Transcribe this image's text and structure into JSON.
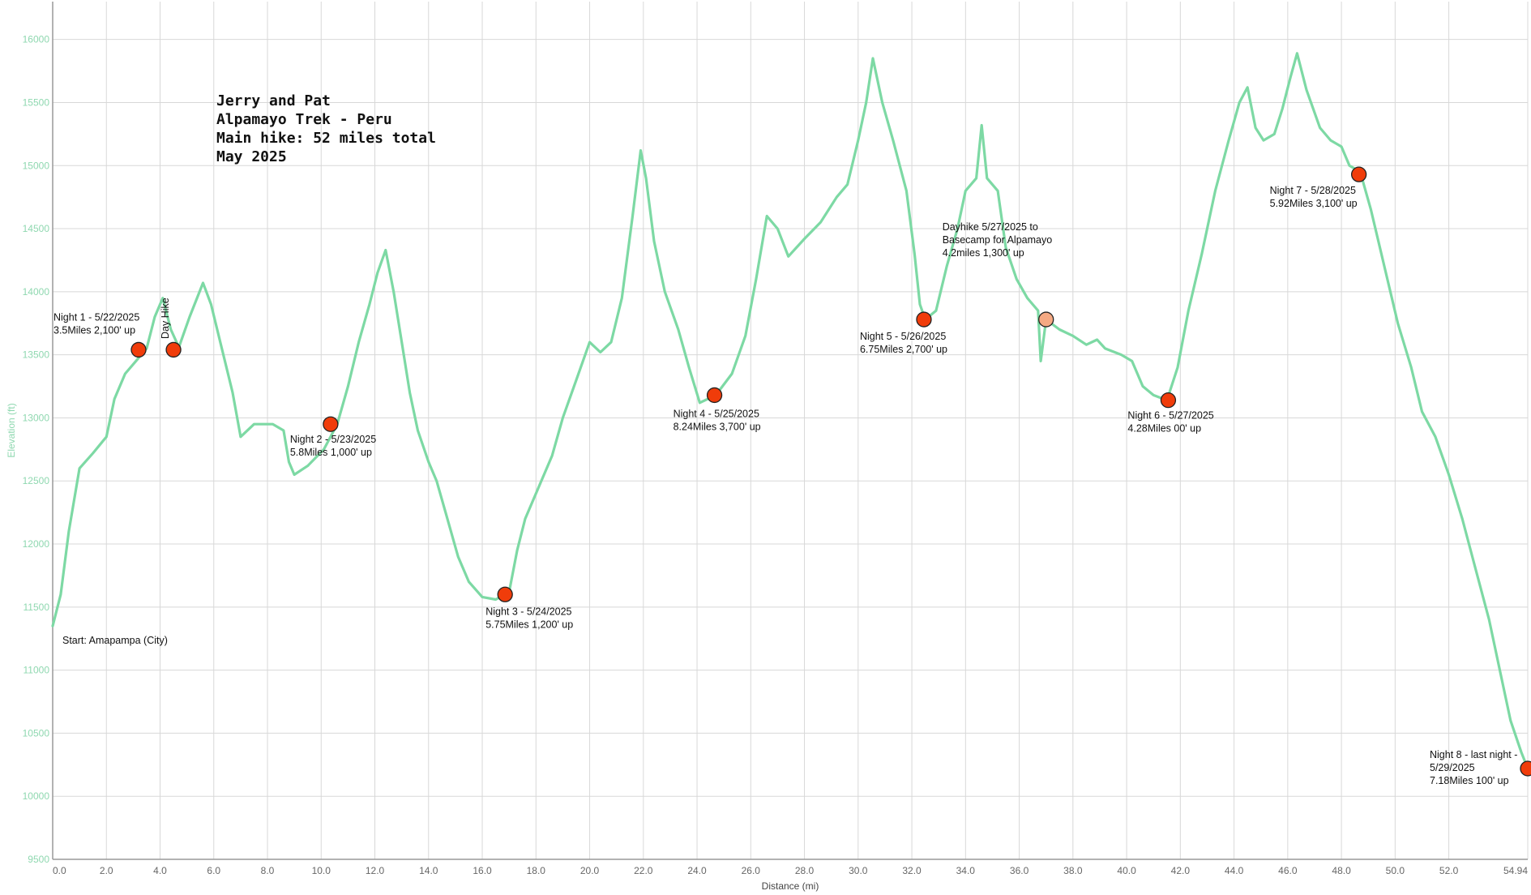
{
  "chart_data": {
    "type": "line",
    "title_lines": [
      "Jerry and Pat",
      "Alpamayo Trek - Peru",
      "Main hike: 52 miles total",
      "May 2025"
    ],
    "xlabel": "Distance (mi)",
    "ylabel": "Elevation (ft)",
    "xlim": [
      0,
      54.94
    ],
    "ylim": [
      9500,
      16300
    ],
    "x_ticks": [
      0,
      2,
      4,
      6,
      8,
      10,
      12,
      14,
      16,
      18,
      20,
      22,
      24,
      26,
      28,
      30,
      32,
      34,
      36,
      38,
      40,
      42,
      44,
      46,
      48,
      50,
      52,
      54.94
    ],
    "x_tick_labels": [
      "0.0",
      "2.0",
      "4.0",
      "6.0",
      "8.0",
      "10.0",
      "12.0",
      "14.0",
      "16.0",
      "18.0",
      "20.0",
      "22.0",
      "24.0",
      "26.0",
      "28.0",
      "30.0",
      "32.0",
      "34.0",
      "36.0",
      "38.0",
      "40.0",
      "42.0",
      "44.0",
      "46.0",
      "48.0",
      "50.0",
      "52.0",
      "54.94"
    ],
    "y_ticks": [
      9500,
      10000,
      10500,
      11000,
      11500,
      12000,
      12500,
      13000,
      13500,
      14000,
      14500,
      15000,
      15500,
      16000
    ],
    "y_tick_labels": [
      "9500",
      "10000",
      "10500",
      "11000",
      "11500",
      "12000",
      "12500",
      "13000",
      "13500",
      "14000",
      "14500",
      "15000",
      "15500",
      "16000"
    ],
    "grid": true,
    "line_color": "#7dd9a4",
    "series": [
      {
        "points": [
          [
            0,
            11350
          ],
          [
            0.3,
            11600
          ],
          [
            0.6,
            12100
          ],
          [
            1.0,
            12600
          ],
          [
            1.5,
            12720
          ],
          [
            2.0,
            12850
          ],
          [
            2.3,
            13150
          ],
          [
            2.7,
            13350
          ],
          [
            3.1,
            13450
          ],
          [
            3.5,
            13550
          ],
          [
            3.8,
            13800
          ],
          [
            4.1,
            13950
          ],
          [
            4.4,
            13700
          ],
          [
            4.7,
            13560
          ],
          [
            5.1,
            13800
          ],
          [
            5.6,
            14070
          ],
          [
            5.9,
            13900
          ],
          [
            6.3,
            13550
          ],
          [
            6.7,
            13200
          ],
          [
            7.0,
            12850
          ],
          [
            7.5,
            12950
          ],
          [
            8.2,
            12950
          ],
          [
            8.6,
            12900
          ],
          [
            8.8,
            12650
          ],
          [
            9.0,
            12550
          ],
          [
            9.5,
            12620
          ],
          [
            10.1,
            12750
          ],
          [
            10.6,
            12950
          ],
          [
            11.0,
            13250
          ],
          [
            11.4,
            13600
          ],
          [
            11.8,
            13900
          ],
          [
            12.1,
            14150
          ],
          [
            12.4,
            14330
          ],
          [
            12.7,
            14000
          ],
          [
            13.0,
            13600
          ],
          [
            13.3,
            13200
          ],
          [
            13.6,
            12900
          ],
          [
            14.0,
            12650
          ],
          [
            14.3,
            12500
          ],
          [
            14.7,
            12200
          ],
          [
            15.1,
            11900
          ],
          [
            15.5,
            11700
          ],
          [
            16.0,
            11580
          ],
          [
            16.5,
            11560
          ],
          [
            17.0,
            11620
          ],
          [
            17.3,
            11950
          ],
          [
            17.6,
            12200
          ],
          [
            18.1,
            12450
          ],
          [
            18.6,
            12700
          ],
          [
            19.0,
            13000
          ],
          [
            19.5,
            13300
          ],
          [
            20.0,
            13600
          ],
          [
            20.4,
            13520
          ],
          [
            20.8,
            13600
          ],
          [
            21.2,
            13950
          ],
          [
            21.6,
            14600
          ],
          [
            21.9,
            15120
          ],
          [
            22.1,
            14900
          ],
          [
            22.4,
            14400
          ],
          [
            22.8,
            14000
          ],
          [
            23.3,
            13700
          ],
          [
            23.7,
            13400
          ],
          [
            24.1,
            13120
          ],
          [
            24.7,
            13180
          ],
          [
            25.3,
            13350
          ],
          [
            25.8,
            13650
          ],
          [
            26.2,
            14100
          ],
          [
            26.6,
            14600
          ],
          [
            27.0,
            14500
          ],
          [
            27.4,
            14280
          ],
          [
            28.0,
            14420
          ],
          [
            28.6,
            14550
          ],
          [
            29.2,
            14750
          ],
          [
            29.6,
            14850
          ],
          [
            30.0,
            15200
          ],
          [
            30.3,
            15500
          ],
          [
            30.55,
            15850
          ],
          [
            30.9,
            15500
          ],
          [
            31.3,
            15200
          ],
          [
            31.8,
            14800
          ],
          [
            32.1,
            14300
          ],
          [
            32.3,
            13900
          ],
          [
            32.5,
            13780
          ],
          [
            32.9,
            13850
          ],
          [
            33.3,
            14200
          ],
          [
            33.7,
            14500
          ],
          [
            34.0,
            14800
          ],
          [
            34.4,
            14900
          ],
          [
            34.6,
            15320
          ],
          [
            34.8,
            14900
          ],
          [
            35.2,
            14800
          ],
          [
            35.5,
            14350
          ],
          [
            35.9,
            14100
          ],
          [
            36.3,
            13950
          ],
          [
            36.7,
            13850
          ],
          [
            36.8,
            13450
          ],
          [
            37.0,
            13780
          ],
          [
            37.5,
            13700
          ],
          [
            38.0,
            13650
          ],
          [
            38.5,
            13580
          ],
          [
            38.9,
            13620
          ],
          [
            39.2,
            13550
          ],
          [
            39.8,
            13500
          ],
          [
            40.2,
            13450
          ],
          [
            40.6,
            13250
          ],
          [
            41.0,
            13180
          ],
          [
            41.5,
            13140
          ],
          [
            41.9,
            13400
          ],
          [
            42.3,
            13850
          ],
          [
            42.8,
            14300
          ],
          [
            43.3,
            14800
          ],
          [
            43.8,
            15200
          ],
          [
            44.2,
            15500
          ],
          [
            44.5,
            15620
          ],
          [
            44.8,
            15300
          ],
          [
            45.1,
            15200
          ],
          [
            45.5,
            15250
          ],
          [
            45.8,
            15450
          ],
          [
            46.1,
            15700
          ],
          [
            46.35,
            15890
          ],
          [
            46.7,
            15600
          ],
          [
            47.2,
            15300
          ],
          [
            47.6,
            15200
          ],
          [
            48.0,
            15150
          ],
          [
            48.3,
            15000
          ],
          [
            48.7,
            14950
          ],
          [
            49.1,
            14650
          ],
          [
            49.6,
            14200
          ],
          [
            50.1,
            13750
          ],
          [
            50.6,
            13400
          ],
          [
            51.0,
            13050
          ],
          [
            51.5,
            12850
          ],
          [
            52.0,
            12550
          ],
          [
            52.5,
            12200
          ],
          [
            53.0,
            11800
          ],
          [
            53.5,
            11400
          ],
          [
            53.9,
            11000
          ],
          [
            54.3,
            10600
          ],
          [
            54.7,
            10350
          ],
          [
            54.94,
            10220
          ]
        ]
      }
    ],
    "markers": [
      {
        "x": 3.2,
        "y": 13540,
        "color": "#f03c0a",
        "label": [
          "Night 1 - 5/22/2025",
          "3.5Miles 2,100' up"
        ]
      },
      {
        "x": 4.5,
        "y": 13540,
        "color": "#f03c0a",
        "label": []
      },
      {
        "x": 10.35,
        "y": 12950,
        "color": "#f03c0a",
        "label": [
          "Night 2 - 5/23/2025",
          "5.8Miles 1,000' up"
        ]
      },
      {
        "x": 16.85,
        "y": 11600,
        "color": "#f03c0a",
        "label": [
          "Night 3 - 5/24/2025",
          "5.75Miles 1,200' up"
        ]
      },
      {
        "x": 24.65,
        "y": 13180,
        "color": "#f03c0a",
        "label": [
          "Night 4 - 5/25/2025",
          "8.24Miles 3,700' up"
        ]
      },
      {
        "x": 32.45,
        "y": 13780,
        "color": "#f03c0a",
        "label": [
          "Night 5 - 5/26/2025",
          "6.75Miles 2,700' up"
        ]
      },
      {
        "x": 37.0,
        "y": 13780,
        "color": "#f5a983",
        "label": [
          "Dayhike 5/27/2025 to",
          "Basecamp for Alpamayo",
          "4.2miles 1,300' up"
        ]
      },
      {
        "x": 41.55,
        "y": 13140,
        "color": "#f03c0a",
        "label": [
          "Night 6 - 5/27/2025",
          "4.28Miles 00' up"
        ]
      },
      {
        "x": 48.65,
        "y": 14930,
        "color": "#f03c0a",
        "label": [
          "Night 7 - 5/28/2025",
          "5.92Miles 3,100' up"
        ]
      },
      {
        "x": 54.94,
        "y": 10220,
        "color": "#f03c0a",
        "label": [
          "Night 8 - last night -",
          "5/29/2025",
          "7.18Miles 100' up"
        ]
      }
    ],
    "annotations": [
      {
        "text": "Start: Amapampa (City)"
      },
      {
        "text": "Day Hike"
      }
    ]
  }
}
